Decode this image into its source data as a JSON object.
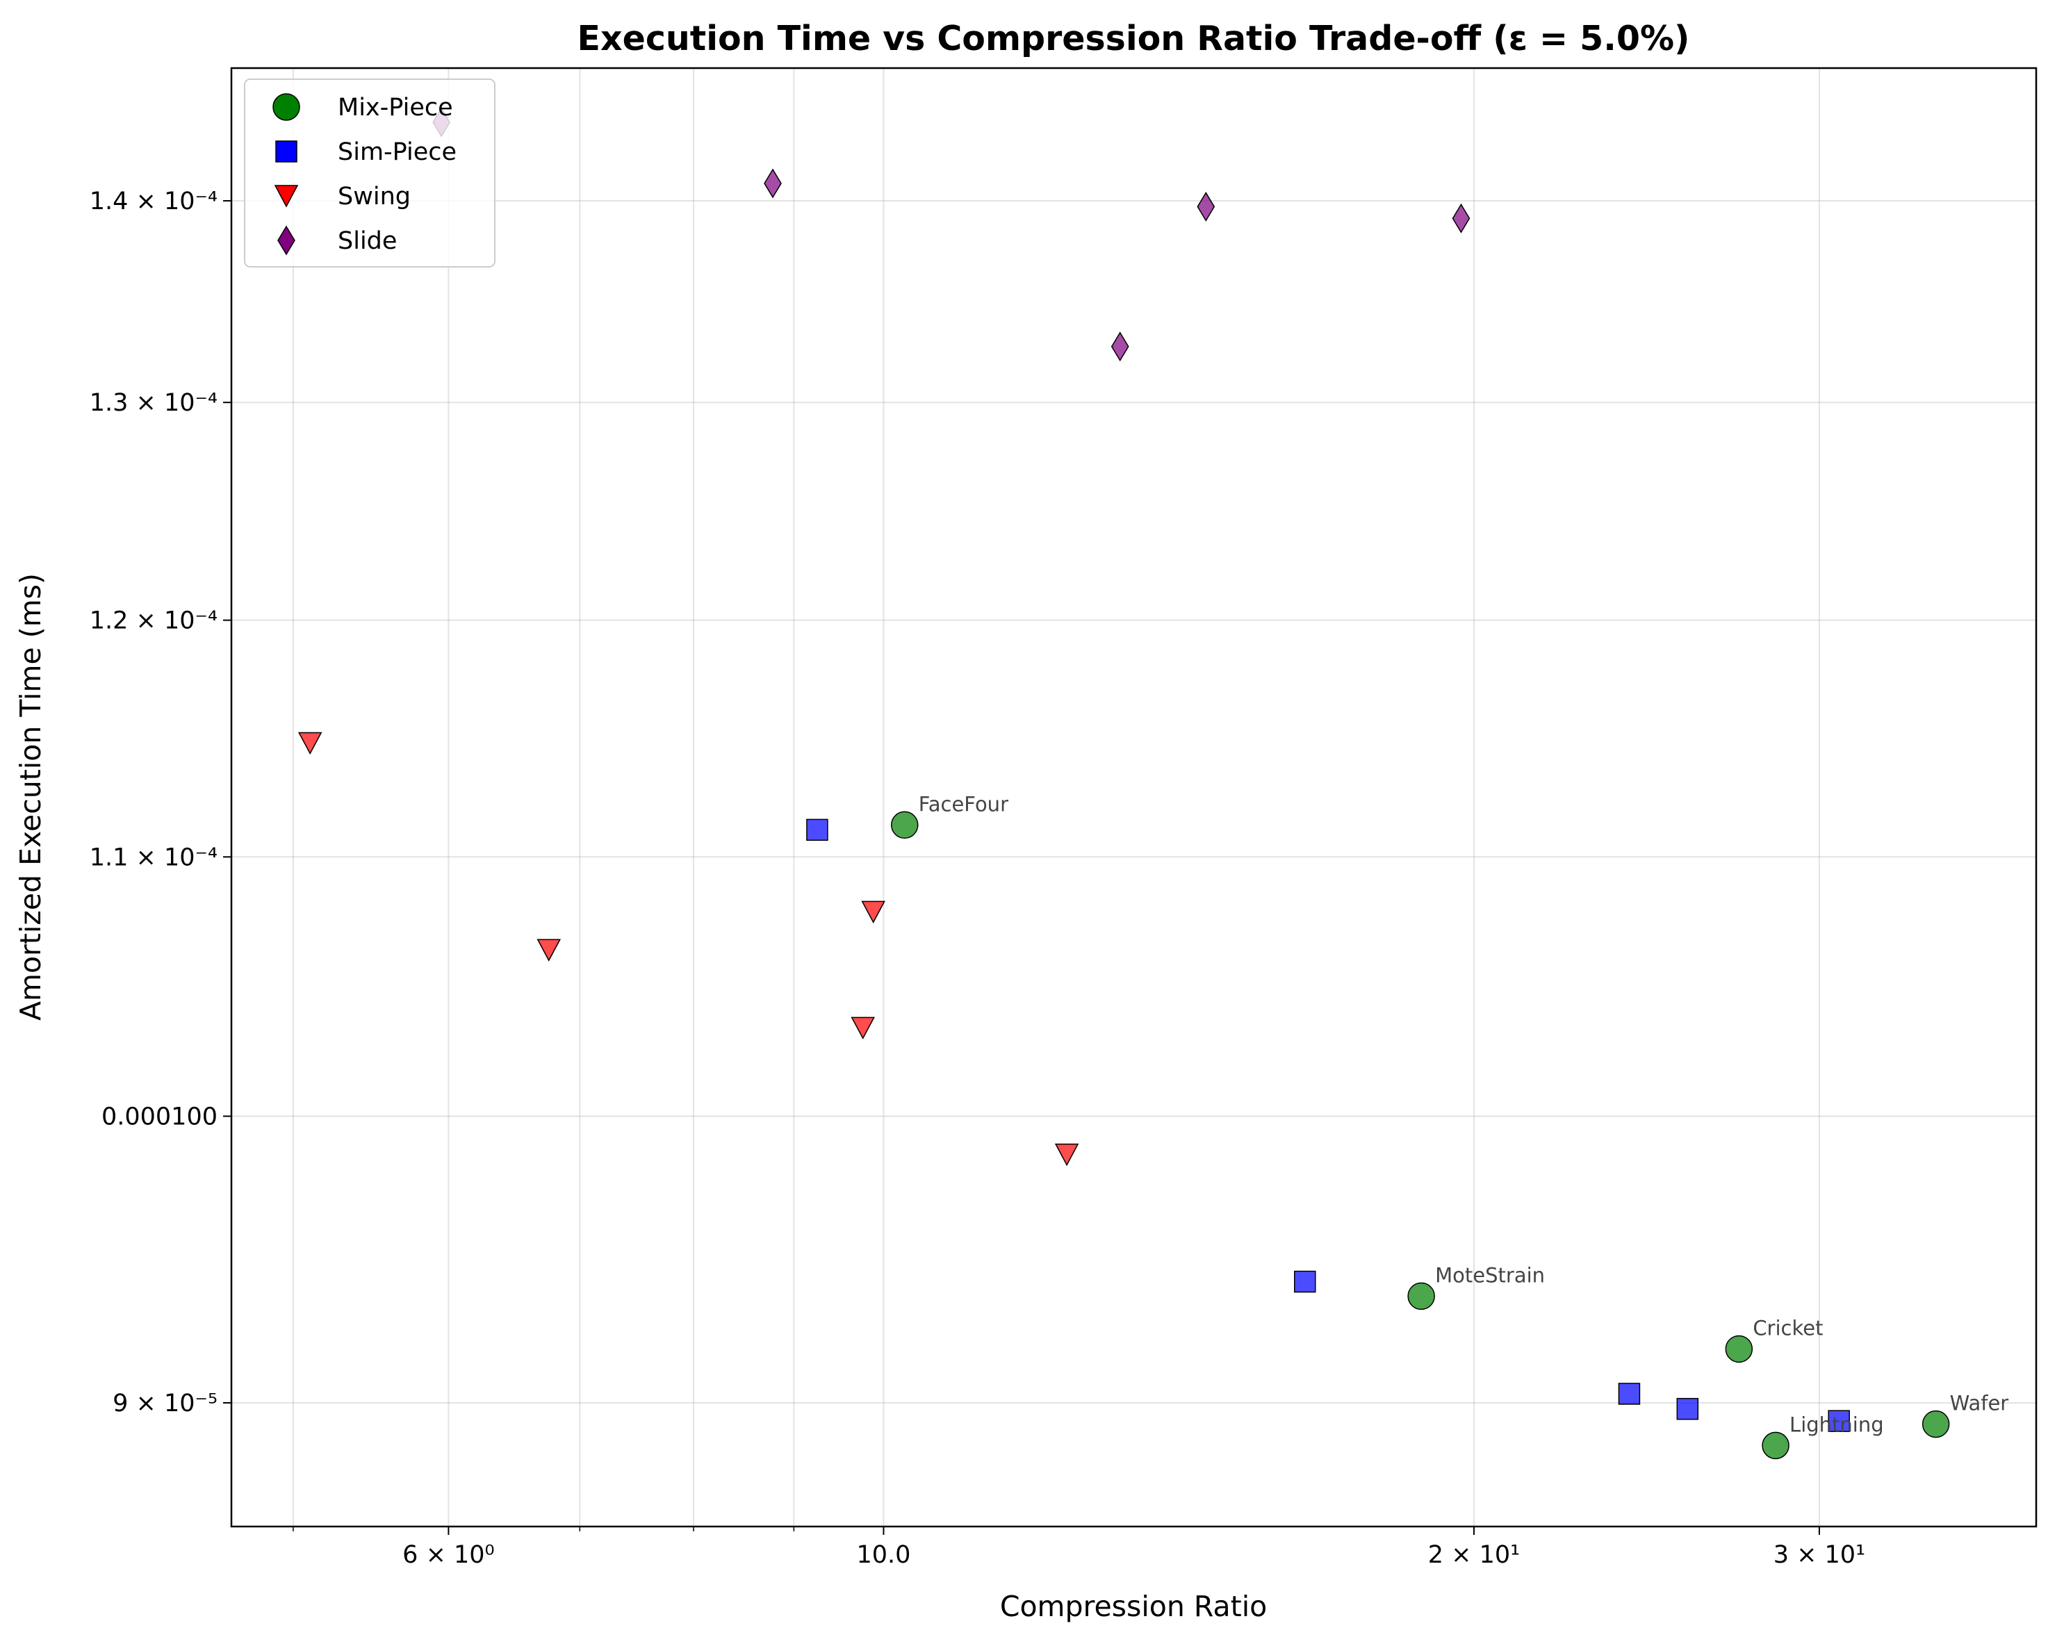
{
  "chart_data": {
    "type": "scatter",
    "title": "Execution Time vs Compression Ratio Trade-off (ε = 5.0%)",
    "xlabel": "Compression Ratio",
    "ylabel": "Amortized Execution Time (ms)",
    "xscale": "log",
    "yscale": "log",
    "xlim": [
      4.65,
      38.7
    ],
    "ylim": [
      8.6e-05,
      0.000147
    ],
    "grid": true,
    "legend_position": "top-left",
    "x_ticks": [
      {
        "value": 6,
        "label": "6 × 10⁰"
      },
      {
        "value": 10,
        "label": "10.0"
      },
      {
        "value": 20,
        "label": "2 × 10¹"
      },
      {
        "value": 30,
        "label": "3 × 10¹"
      }
    ],
    "x_minor_ticks": [
      5,
      7,
      8,
      9
    ],
    "y_ticks": [
      {
        "value": 9e-05,
        "label": "9 × 10⁻⁵"
      },
      {
        "value": 0.0001,
        "label": "0.000100"
      },
      {
        "value": 0.00011,
        "label": "1.1 × 10⁻⁴"
      },
      {
        "value": 0.00012,
        "label": "1.2 × 10⁻⁴"
      },
      {
        "value": 0.00013,
        "label": "1.3 × 10⁻⁴"
      },
      {
        "value": 0.00014,
        "label": "1.4 × 10⁻⁴"
      }
    ],
    "series": [
      {
        "name": "Mix-Piece",
        "marker": "circle",
        "color": "#008000",
        "points": [
          {
            "x": 10.25,
            "y": 0.0001113,
            "label": "FaceFour"
          },
          {
            "x": 18.8,
            "y": 9.36e-05,
            "label": "MoteStrain"
          },
          {
            "x": 27.3,
            "y": 9.18e-05,
            "label": "Cricket"
          },
          {
            "x": 28.5,
            "y": 8.86e-05,
            "label": "Lightning"
          },
          {
            "x": 34.4,
            "y": 8.93e-05,
            "label": "Wafer"
          }
        ]
      },
      {
        "name": "Sim-Piece",
        "marker": "square",
        "color": "#0000ff",
        "points": [
          {
            "x": 9.25,
            "y": 0.0001111
          },
          {
            "x": 16.4,
            "y": 9.41e-05
          },
          {
            "x": 24.0,
            "y": 9.03e-05
          },
          {
            "x": 25.7,
            "y": 8.98e-05
          },
          {
            "x": 30.7,
            "y": 8.94e-05
          }
        ]
      },
      {
        "name": "Swing",
        "marker": "triangle-down",
        "color": "#ff0000",
        "points": [
          {
            "x": 5.1,
            "y": 0.0001147
          },
          {
            "x": 6.75,
            "y": 0.0001063
          },
          {
            "x": 9.88,
            "y": 0.0001078
          },
          {
            "x": 9.76,
            "y": 0.0001033
          },
          {
            "x": 12.4,
            "y": 9.86e-05
          }
        ]
      },
      {
        "name": "Slide",
        "marker": "diamond",
        "color": "#800080",
        "points": [
          {
            "x": 5.95,
            "y": 0.0001441
          },
          {
            "x": 8.78,
            "y": 0.0001409
          },
          {
            "x": 13.2,
            "y": 0.0001327
          },
          {
            "x": 14.6,
            "y": 0.0001397
          },
          {
            "x": 19.7,
            "y": 0.0001391
          }
        ]
      }
    ]
  }
}
